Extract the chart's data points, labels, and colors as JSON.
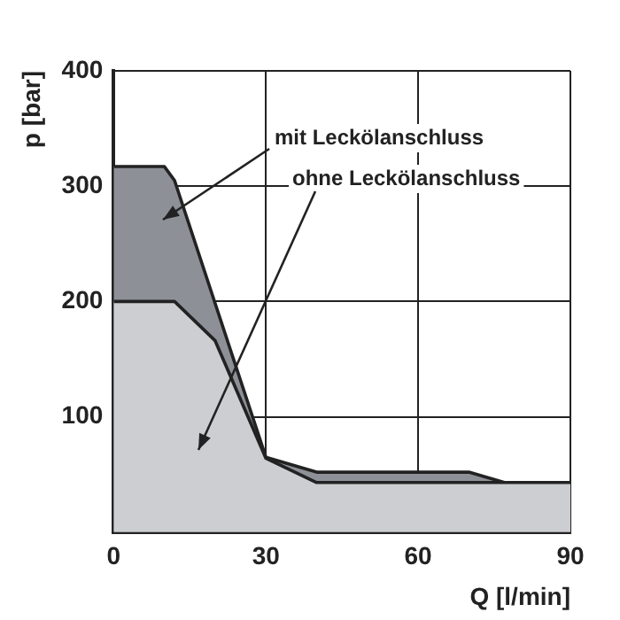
{
  "chart_data": {
    "type": "area",
    "xlabel": "Q [l/min]",
    "ylabel": "p [bar]",
    "series": [
      {
        "name": "mit Leckölanschluss",
        "color": "#8e9097",
        "x": [
          0,
          10,
          12,
          30,
          40,
          70,
          77,
          90
        ],
        "values": [
          317,
          317,
          305,
          65,
          52,
          52,
          43,
          43
        ]
      },
      {
        "name": "ohne Leckölanschluss",
        "color": "#cdced2",
        "x": [
          0,
          12,
          20,
          30,
          40,
          90
        ],
        "values": [
          200,
          200,
          166,
          64,
          43,
          43
        ]
      }
    ],
    "xlim": [
      0,
      90
    ],
    "ylim": [
      0,
      400
    ],
    "xticks": [
      0,
      30,
      60,
      90
    ],
    "yticks": [
      100,
      200,
      300,
      400
    ],
    "grid": true,
    "legend": false
  }
}
